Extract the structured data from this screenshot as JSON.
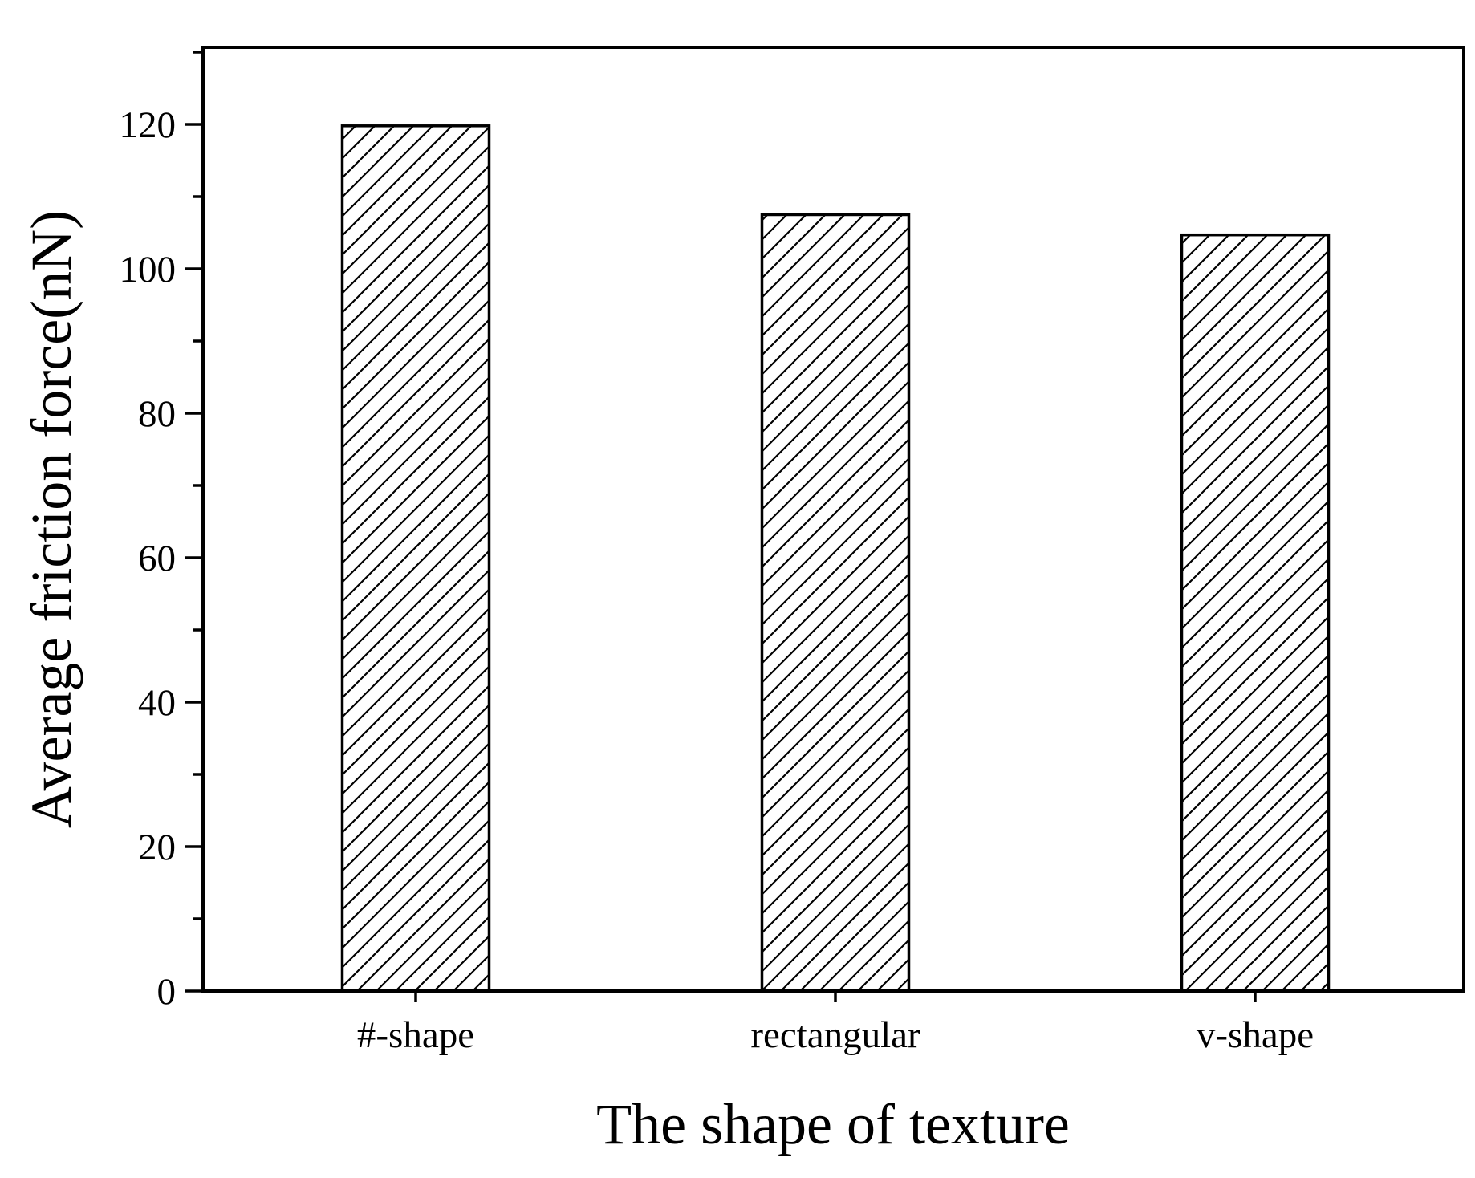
{
  "chart_data": {
    "type": "bar",
    "categories": [
      "#-shape",
      "rectangular",
      "v-shape"
    ],
    "values": [
      119.8,
      107.5,
      104.7
    ],
    "title": "",
    "xlabel": "The shape of texture",
    "ylabel": "Average friction force(nN)",
    "ylim": [
      0,
      130
    ],
    "yticks": [
      0,
      20,
      40,
      60,
      80,
      100,
      120
    ],
    "yminor_step": 10,
    "grid": false,
    "bar_fill": "hatched diagonal",
    "colors": {
      "bar_fill": "#ffffff",
      "bar_stroke": "#000000",
      "hatch": "#000000",
      "axis": "#000000"
    }
  }
}
